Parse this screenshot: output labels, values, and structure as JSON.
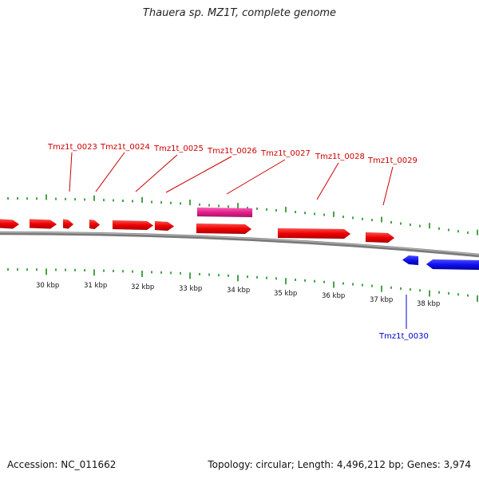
{
  "title": "Thauera sp. MZ1T, complete genome",
  "accession": "Accession: NC_011662",
  "summary": "Topology: circular; Length: 4,496,212 bp; Genes: 3,974",
  "colors": {
    "forward_gene": "#ee0000",
    "reverse_gene": "#1010ee",
    "rna_gene": "#e0208a",
    "tick": "#1a8a1a",
    "backbone": "#808080",
    "label_forward": "#cc0000",
    "label_reverse": "#0000cc"
  },
  "scale": {
    "unit": "kbp",
    "ticks": [
      "30 kbp",
      "31 kbp",
      "32 kbp",
      "33 kbp",
      "34 kbp",
      "35 kbp",
      "36 kbp",
      "37 kbp",
      "38 kbp"
    ]
  },
  "genes": [
    {
      "label": "",
      "strand": "forward"
    },
    {
      "label": "",
      "strand": "forward"
    },
    {
      "label": "Tmz1t_0023",
      "strand": "forward"
    },
    {
      "label": "Tmz1t_0024",
      "strand": "forward"
    },
    {
      "label": "Tmz1t_0025",
      "strand": "forward"
    },
    {
      "label": "Tmz1t_0026",
      "strand": "forward"
    },
    {
      "label": "Tmz1t_0027",
      "strand": "forward"
    },
    {
      "label": "Tmz1t_0028",
      "strand": "forward"
    },
    {
      "label": "Tmz1t_0029",
      "strand": "forward"
    },
    {
      "label": "",
      "strand": "rna"
    },
    {
      "label": "Tmz1t_0030",
      "strand": "reverse"
    },
    {
      "label": "",
      "strand": "reverse"
    }
  ]
}
